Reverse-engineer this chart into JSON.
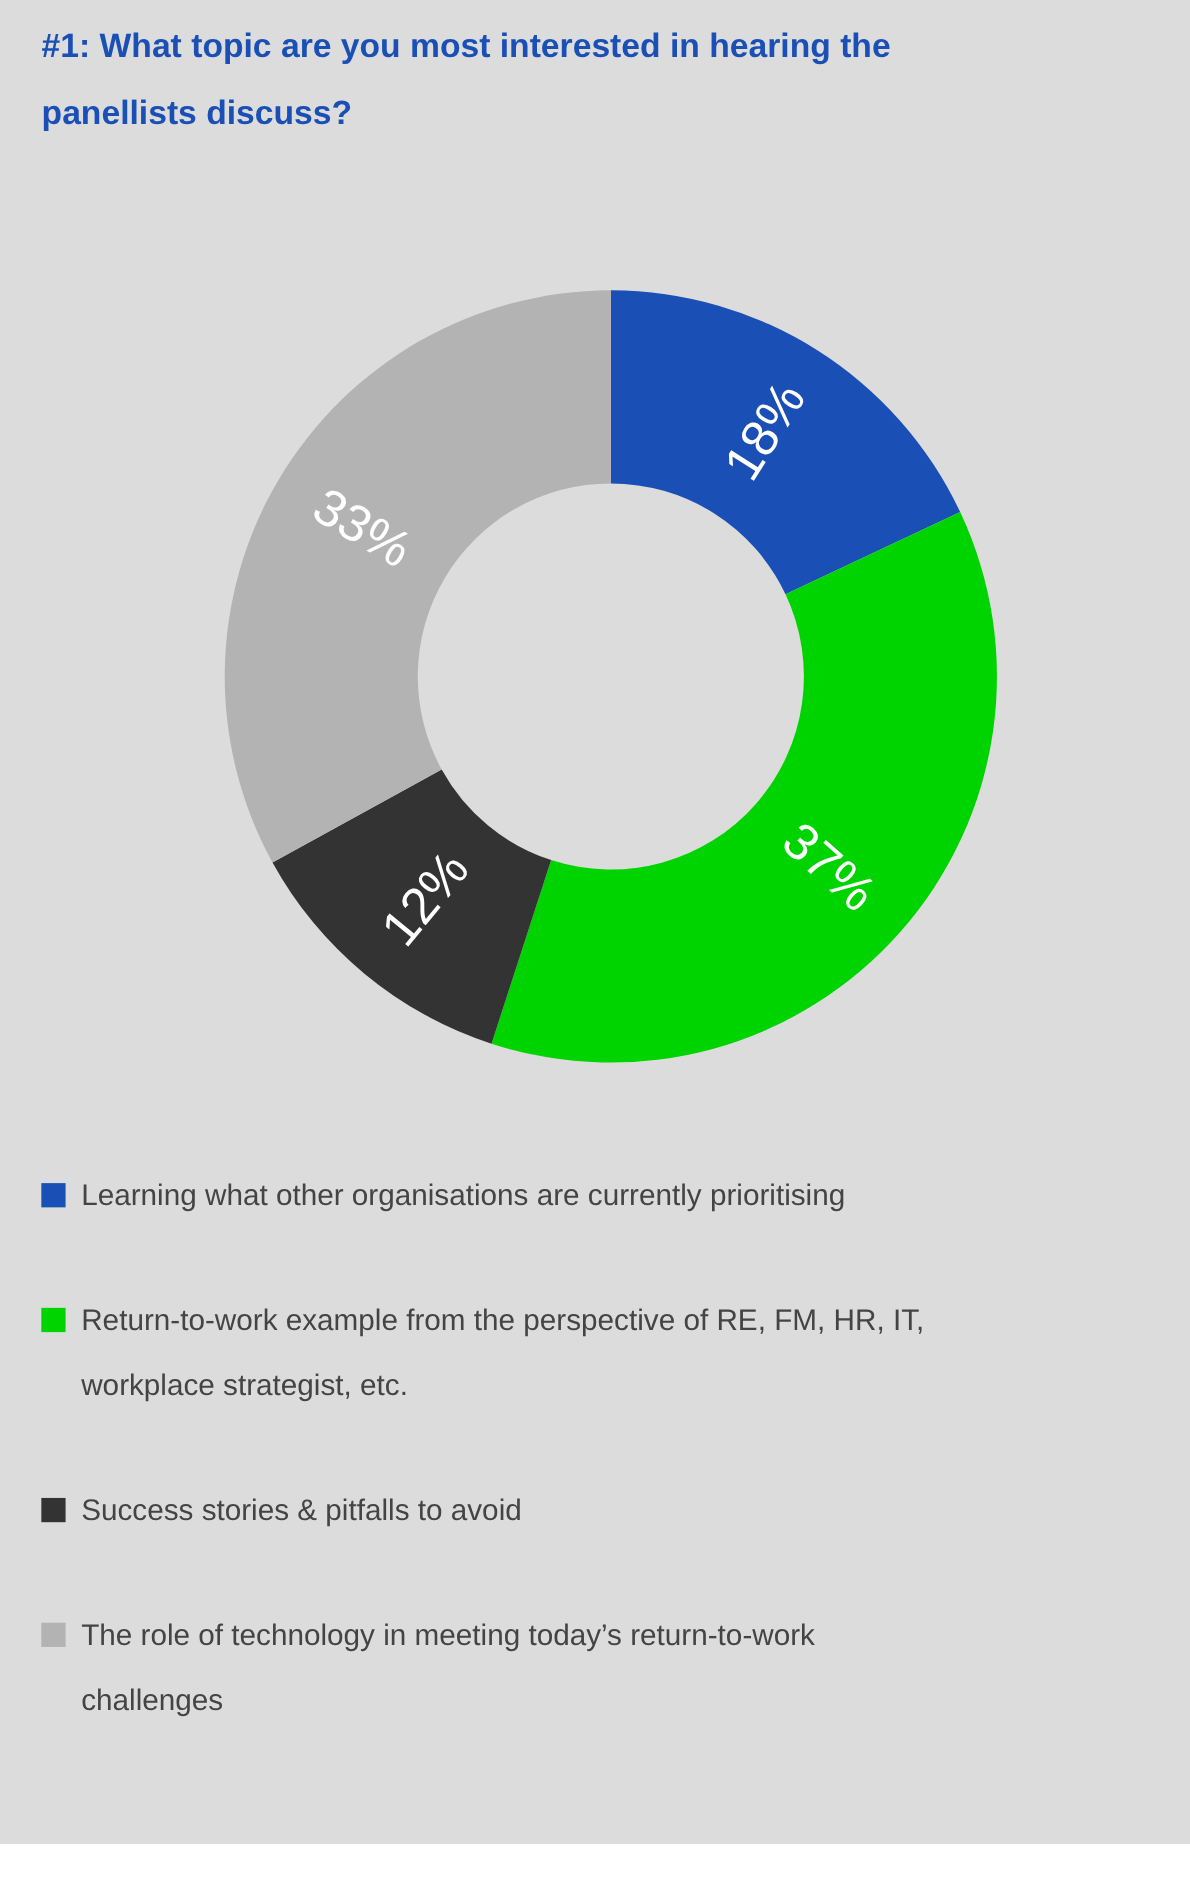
{
  "chart_data": {
    "type": "donut",
    "title": "#1: What topic are you most interested in hearing the panellists discuss?",
    "categories": [
      "Learning what other organisations are currently prioritising",
      "Return-to-work example from the perspective of RE, FM, HR, IT, workplace strategist, etc.",
      "Success stories & pitfalls to avoid",
      "The role of technology in meeting today’s return-to-work challenges"
    ],
    "values": [
      18,
      37,
      12,
      33
    ],
    "colors": [
      "#1a4fb5",
      "#00d400",
      "#333333",
      "#b3b3b3"
    ],
    "value_labels": [
      "18%",
      "37%",
      "12%",
      "33%"
    ],
    "legend": "bottom"
  }
}
